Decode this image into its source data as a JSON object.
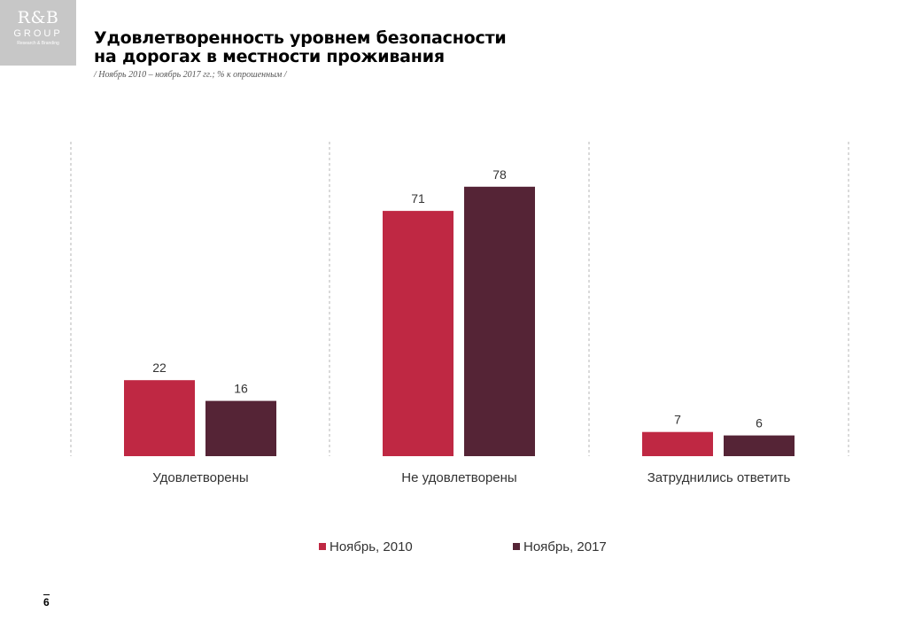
{
  "logo": {
    "main": "R&B",
    "group": "GROUP",
    "sub": "Research & Branding"
  },
  "header": {
    "title_line1": "Удовлетворенность уровнем безопасности",
    "title_line2": "на дорогах в местности проживания",
    "subtitle": "/ Ноябрь 2010 – ноябрь 2017 гг.; %  к опрошенным /"
  },
  "colors": {
    "series_2010": "#bf2843",
    "series_2017": "#552436",
    "gridline": "#b5b5b5"
  },
  "chart_data": {
    "type": "bar",
    "categories": [
      "Удовлетворены",
      "Не удовлетворены",
      "Затруднились ответить"
    ],
    "series": [
      {
        "name": "Ноябрь, 2010",
        "values": [
          22,
          71,
          7
        ]
      },
      {
        "name": "Ноябрь, 2017",
        "values": [
          16,
          78,
          6
        ]
      }
    ],
    "ylim": [
      0,
      90
    ],
    "grid": "vertical dashed separators",
    "legend_position": "bottom",
    "data_labels": true
  },
  "footer": {
    "page_number": "6"
  }
}
